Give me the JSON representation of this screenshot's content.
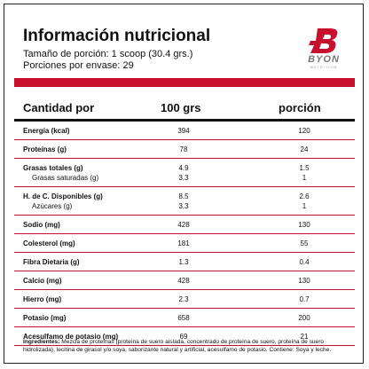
{
  "header": {
    "title": "Información nutricional",
    "serving_size": "Tamaño de porción: 1 scoop (30.4 grs.)",
    "servings": "Porciones por envase: 29"
  },
  "brand": {
    "name": "BYON",
    "sub": "NUTRITION"
  },
  "table": {
    "columns": [
      "Cantidad por",
      "100 grs",
      "porción"
    ],
    "rows": [
      [
        [
          "Energía (kcal)",
          "394",
          "120"
        ]
      ],
      [
        [
          "Proteínas (g)",
          "78",
          "24"
        ]
      ],
      [
        [
          "Grasas totales (g)",
          "4.9",
          "1.5"
        ],
        [
          "Grasas saturadas (g)",
          "3.3",
          "1"
        ]
      ],
      [
        [
          "H. de C. Disponibles (g)",
          "8.5",
          "2.6"
        ],
        [
          "Azúcares (g)",
          "3.3",
          "1"
        ]
      ],
      [
        [
          "Sodio (mg)",
          "428",
          "130"
        ]
      ],
      [
        [
          "Colesterol (mg)",
          "181",
          "55"
        ]
      ],
      [
        [
          "Fibra Dietaria (g)",
          "1.3",
          "0.4"
        ]
      ],
      [
        [
          "Calcio (mg)",
          "428",
          "130"
        ]
      ],
      [
        [
          "Hierro (mg)",
          "2.3",
          "0.7"
        ]
      ],
      [
        [
          "Potasio (mg)",
          "658",
          "200"
        ]
      ],
      [
        [
          "Acesulfamo de potasio (mg)",
          "69",
          "21"
        ]
      ]
    ]
  },
  "ingredients": {
    "label": "Ingredientes:",
    "text": "Mezcla de proteínas (proteína de suero aislada, concentrado de proteína de suero, proteína de suero hidrolizada), lecitina de girasol y/o soya, saborizante natural y artificial, acesulfamo de potasio. Contiene: Soya y leche."
  }
}
